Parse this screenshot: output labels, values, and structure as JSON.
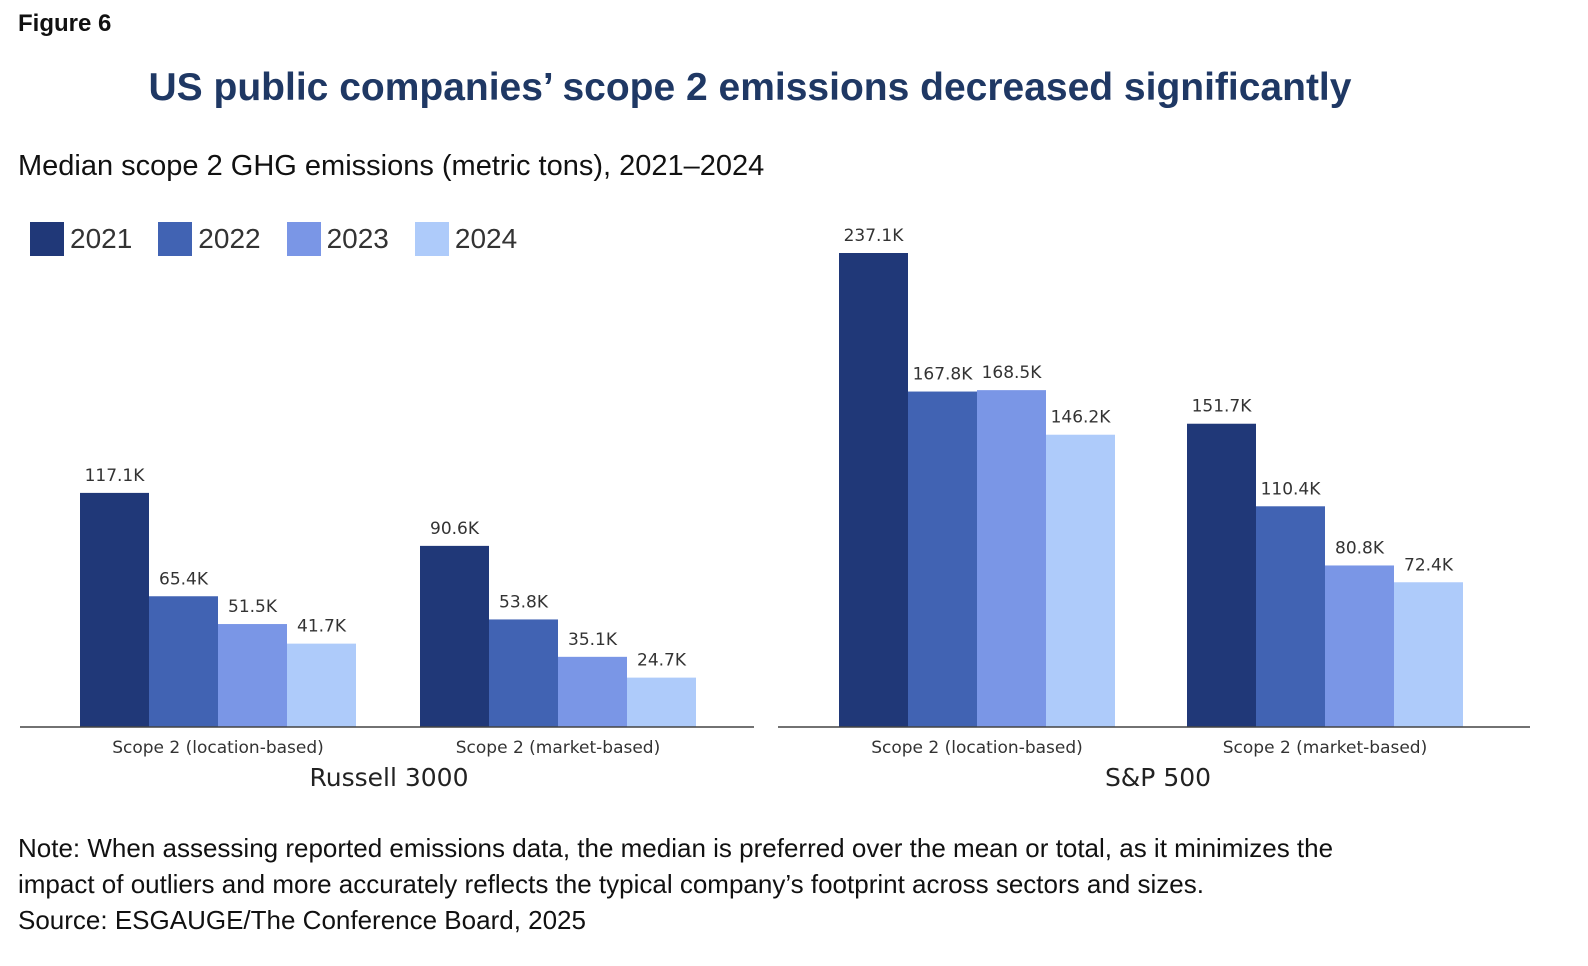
{
  "figure_label": "Figure 6",
  "colors": {
    "title": "#1f3864",
    "series": [
      "#203878",
      "#4163b3",
      "#7a96e6",
      "#aecbfa"
    ]
  },
  "chart_data": [
    {
      "type": "bar",
      "title": "US public companies’ scope 2 emissions decreased significantly",
      "subtitle": "Median scope 2 GHG emissions (metric tons), 2021–2024",
      "panel": "Russell 3000",
      "categories": [
        "Scope 2 (location-based)",
        "Scope 2 (market-based)"
      ],
      "series": [
        {
          "name": "2021",
          "values": [
            117.1,
            90.6
          ],
          "labels": [
            "117.1K",
            "90.6K"
          ]
        },
        {
          "name": "2022",
          "values": [
            65.4,
            53.8
          ],
          "labels": [
            "65.4K",
            "53.8K"
          ]
        },
        {
          "name": "2023",
          "values": [
            51.5,
            35.1
          ],
          "labels": [
            "51.5K",
            "35.1K"
          ]
        },
        {
          "name": "2024",
          "values": [
            41.7,
            24.7
          ],
          "labels": [
            "41.7K",
            "24.7K"
          ]
        }
      ],
      "ylim": [
        0,
        237.1
      ],
      "grid": false,
      "legend": "top-left"
    },
    {
      "type": "bar",
      "panel": "S&P 500",
      "categories": [
        "Scope 2 (location-based)",
        "Scope 2 (market-based)"
      ],
      "series": [
        {
          "name": "2021",
          "values": [
            237.1,
            151.7
          ],
          "labels": [
            "237.1K",
            "151.7K"
          ]
        },
        {
          "name": "2022",
          "values": [
            167.8,
            110.4
          ],
          "labels": [
            "167.8K",
            "110.4K"
          ]
        },
        {
          "name": "2023",
          "values": [
            168.5,
            80.8
          ],
          "labels": [
            "168.5K",
            "80.8K"
          ]
        },
        {
          "name": "2024",
          "values": [
            146.2,
            72.4
          ],
          "labels": [
            "146.2K",
            "72.4K"
          ]
        }
      ],
      "ylim": [
        0,
        237.1
      ],
      "grid": false
    }
  ],
  "note": {
    "line1": "Note: When assessing reported emissions data, the median is preferred over the mean or total, as it minimizes the",
    "line2": "impact of outliers and more accurately reflects the typical company’s footprint across sectors and sizes.",
    "source": "Source: ESGAUGE/The Conference Board, 2025"
  }
}
